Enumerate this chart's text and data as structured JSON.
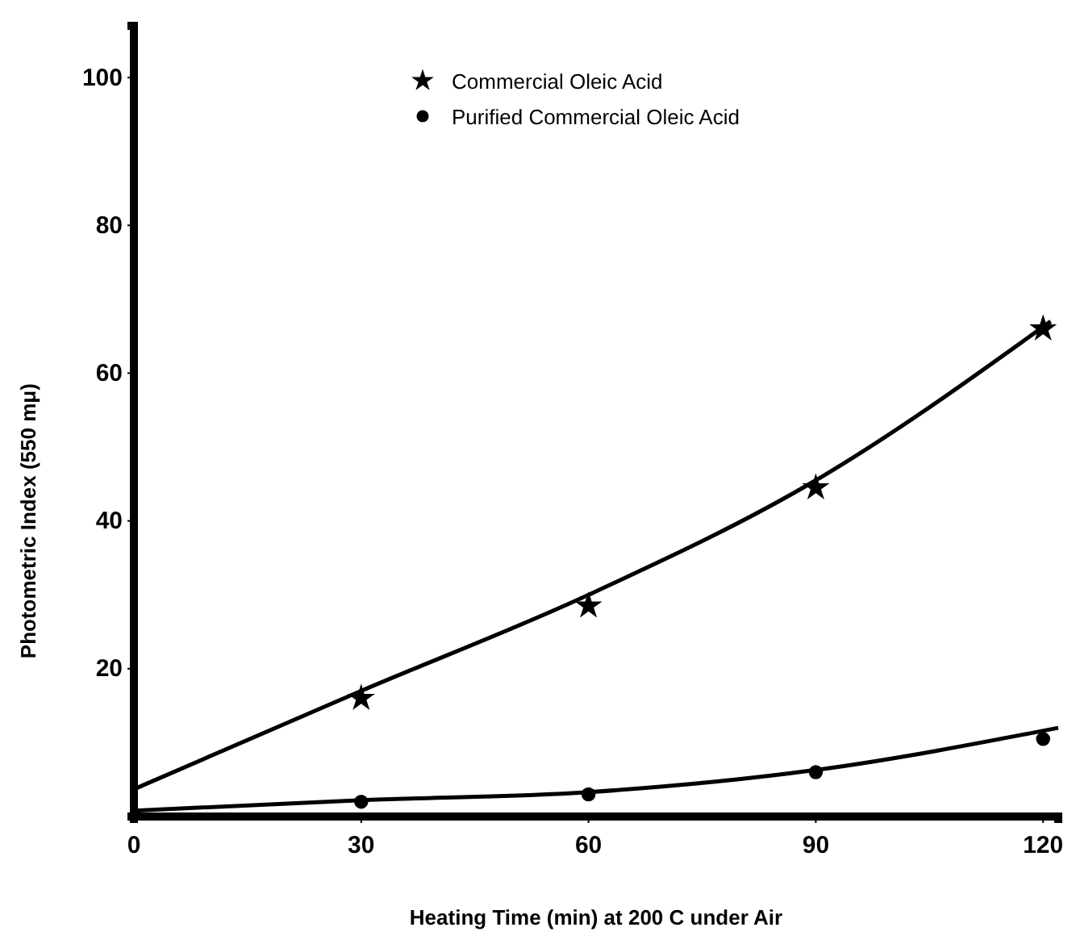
{
  "chart_data": {
    "type": "scatter",
    "xlabel": "Heating Time (min) at 200 C under Air",
    "ylabel": "Photometric Index (550 mμ)",
    "xlim": [
      0,
      122
    ],
    "ylim": [
      0,
      107
    ],
    "xticks": [
      0,
      30,
      60,
      90,
      120
    ],
    "yticks": [
      20,
      40,
      60,
      80,
      100
    ],
    "grid": false,
    "legend": "top",
    "series": [
      {
        "name": "Commercial Oleic Acid",
        "marker": "star",
        "color": "#000000",
        "x": [
          30,
          60,
          90,
          120
        ],
        "values": [
          16,
          28.5,
          44.5,
          66
        ]
      },
      {
        "name": "Purified Commercial Oleic Acid",
        "marker": "circle",
        "color": "#000000",
        "x": [
          30,
          60,
          90,
          120
        ],
        "values": [
          2,
          3,
          6,
          10.5
        ]
      },
      {
        "type": "line",
        "marker": "none",
        "color": "#000000",
        "x": [
          0,
          30,
          60,
          90,
          121
        ],
        "values": [
          3.7,
          17,
          30,
          45.5,
          67
        ]
      },
      {
        "type": "line",
        "marker": "none",
        "color": "#000000",
        "x": [
          0,
          30,
          60,
          90,
          122
        ],
        "values": [
          0.8,
          2.2,
          3.3,
          6.3,
          12
        ]
      }
    ]
  }
}
